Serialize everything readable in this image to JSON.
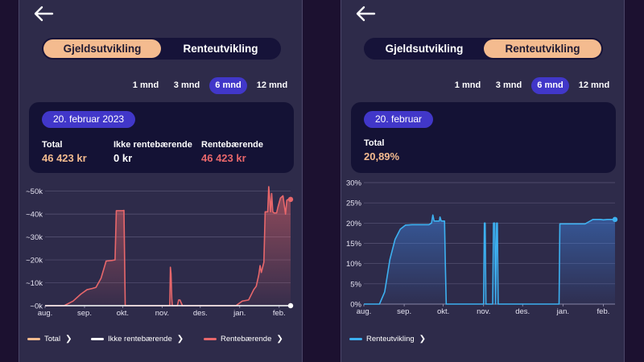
{
  "left_screen": {
    "tabs": [
      {
        "label": "Gjeldsutvikling",
        "active": true
      },
      {
        "label": "Renteutvikling",
        "active": false
      }
    ],
    "periods": [
      "1 mnd",
      "3 mnd",
      "6 mnd",
      "12 mnd"
    ],
    "active_period": "6 mnd",
    "summary": {
      "date": "20. februar 2023",
      "total": {
        "label": "Total",
        "value": "46 423 kr"
      },
      "non_interest": {
        "label": "Ikke rentebærende",
        "value": "0 kr"
      },
      "interest": {
        "label": "Rentebærende",
        "value": "46 423 kr"
      }
    },
    "legend": [
      {
        "label": "Total",
        "color": "#f4bb8f"
      },
      {
        "label": "Ikke rentebærende",
        "color": "#ffffff"
      },
      {
        "label": "Rentebærende",
        "color": "#e8676b"
      }
    ]
  },
  "right_screen": {
    "tabs": [
      {
        "label": "Gjeldsutvikling",
        "active": false
      },
      {
        "label": "Renteutvikling",
        "active": true
      }
    ],
    "periods": [
      "1 mnd",
      "3 mnd",
      "6 mnd",
      "12 mnd"
    ],
    "active_period": "6 mnd",
    "summary": {
      "date": "20. februar",
      "total": {
        "label": "Total",
        "value": "20,89%"
      }
    },
    "legend": [
      {
        "label": "Renteutvikling",
        "color": "#3db0f0"
      }
    ]
  },
  "colors": {
    "accent": "#4137c9",
    "peach": "#f4bb8f",
    "red": "#e8676b",
    "blue": "#3db0f0"
  },
  "chart_data": [
    {
      "type": "area",
      "title": "",
      "xlabel": "",
      "ylabel": "",
      "x_ticks": [
        "aug.",
        "sep.",
        "okt.",
        "nov.",
        "des.",
        "jan.",
        "feb."
      ],
      "y_ticks": [
        "~0k",
        "~10k",
        "~20k",
        "~30k",
        "~40k",
        "~50k"
      ],
      "ylim": [
        0,
        52000
      ],
      "grid": true,
      "series": [
        {
          "name": "Rentebærende",
          "color": "#e8676b",
          "x_days": [
            0,
            15,
            22,
            28,
            33,
            37,
            40,
            44,
            48,
            53,
            55,
            56,
            60,
            61,
            62,
            63,
            98,
            98.5,
            99,
            99.6,
            100,
            104,
            105,
            106,
            108,
            109,
            150,
            155,
            160,
            164,
            166,
            168,
            169,
            170,
            172,
            173,
            175,
            175.8,
            176.6,
            177.3,
            178.1,
            179,
            180,
            181,
            182,
            183,
            185,
            187,
            189,
            190,
            191,
            193
          ],
          "y": [
            0,
            0,
            2000,
            5000,
            7000,
            7500,
            8000,
            12000,
            19500,
            19800,
            20000,
            41500,
            41500,
            41500,
            41600,
            0,
            0,
            16800,
            14000,
            3000,
            0,
            0,
            2500,
            2500,
            0,
            0,
            0,
            2000,
            2500,
            7000,
            8500,
            13500,
            17500,
            14500,
            19000,
            41000,
            41000,
            52000,
            46500,
            41000,
            49000,
            41000,
            40500,
            40500,
            40500,
            43000,
            47000,
            48000,
            40000,
            46000,
            46400,
            46423
          ]
        },
        {
          "name": "Ikke rentebærende",
          "color": "#ffffff",
          "x_days": [
            0,
            193
          ],
          "y": [
            0,
            0
          ]
        }
      ]
    },
    {
      "type": "area",
      "title": "",
      "xlabel": "",
      "ylabel": "",
      "x_ticks": [
        "aug.",
        "sep.",
        "okt.",
        "nov.",
        "des.",
        "jan.",
        "feb."
      ],
      "y_ticks": [
        "0%",
        "5%",
        "10%",
        "15%",
        "20%",
        "25%",
        "30%"
      ],
      "ylim": [
        0,
        30
      ],
      "grid": true,
      "series": [
        {
          "name": "Renteutvikling",
          "color": "#3db0f0",
          "x_days": [
            0,
            12,
            16,
            20,
            24,
            28,
            32,
            37,
            50,
            52,
            53,
            54,
            55,
            58,
            58.5,
            59.5,
            62,
            62.6,
            63.3,
            92,
            92.6,
            93.2,
            93.8,
            99,
            99.6,
            100.6,
            101.2,
            102,
            102.6,
            103.2,
            150,
            150.6,
            151.3,
            169,
            170,
            176,
            182,
            184,
            187,
            191,
            193
          ],
          "y": [
            0,
            0,
            3,
            11,
            16,
            18.5,
            19.5,
            19.6,
            19.6,
            20,
            22,
            20.5,
            20.5,
            20.5,
            21.5,
            20.5,
            20.5,
            10,
            0,
            0,
            20,
            20,
            0,
            0,
            20,
            20,
            0,
            20,
            20,
            0,
            0,
            19.8,
            19.8,
            19.8,
            19.8,
            20.9,
            20.9,
            20.8,
            20.9,
            20.9,
            20.89
          ]
        }
      ]
    }
  ]
}
